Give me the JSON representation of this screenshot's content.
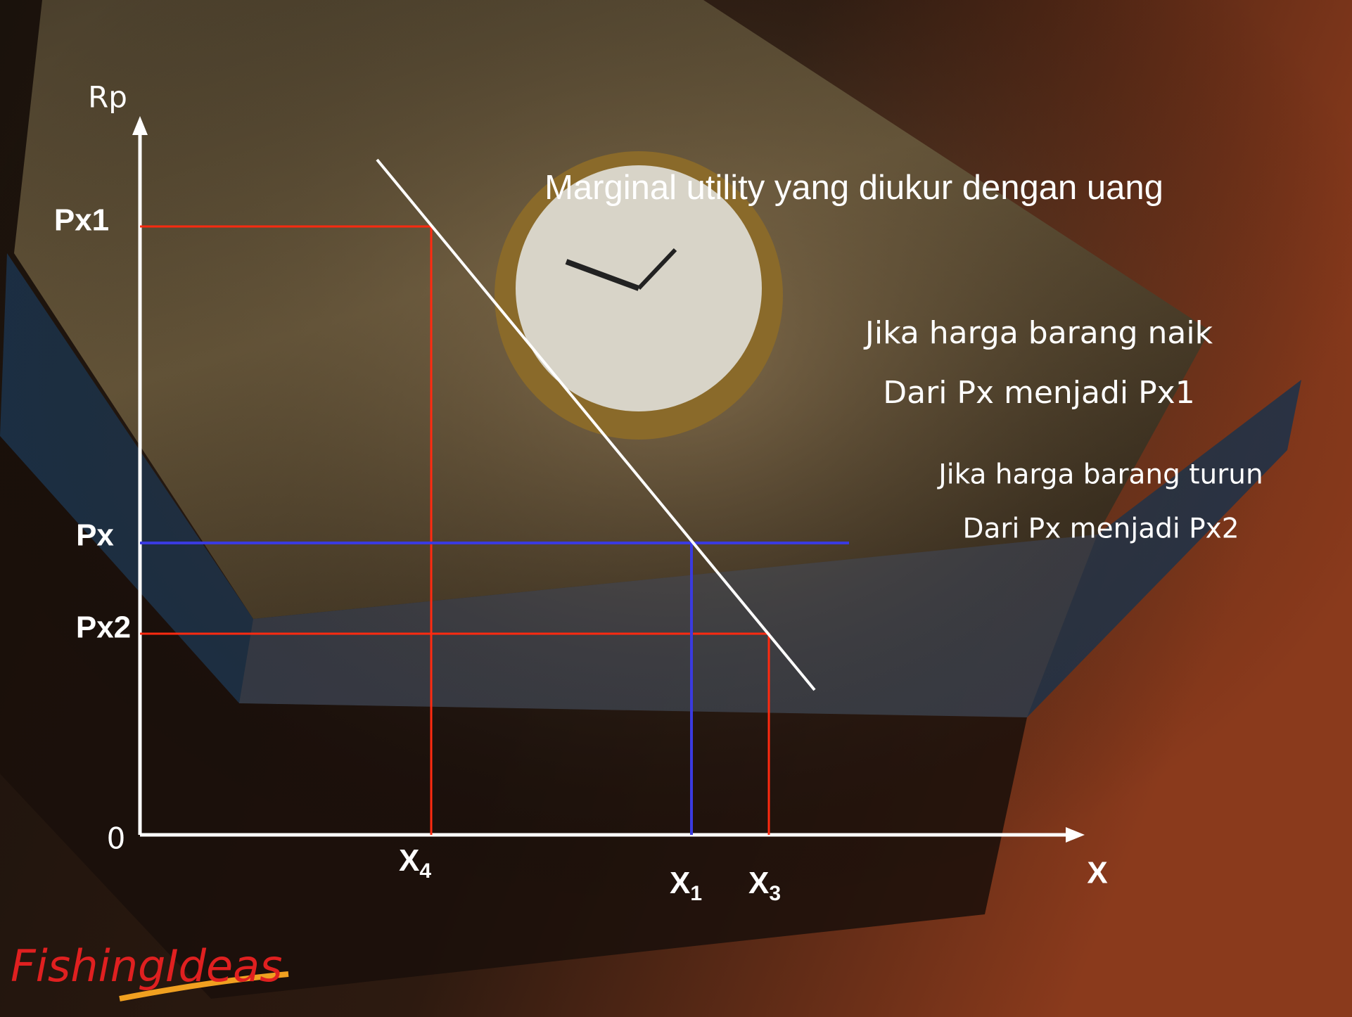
{
  "axes": {
    "y_label": "Rp",
    "x_label": "X",
    "origin": "0"
  },
  "price_levels": [
    "Px1",
    "Px",
    "Px2"
  ],
  "quantity_labels": [
    {
      "base": "X",
      "sub": "4"
    },
    {
      "base": "X",
      "sub": "1"
    },
    {
      "base": "X",
      "sub": "3"
    }
  ],
  "title": "Marginal utility yang diukur dengan uang",
  "notes": [
    "Jika harga barang naik",
    "Dari Px menjadi Px1",
    "Jika harga barang turun",
    "Dari Px menjadi Px2"
  ],
  "logo": "FishingIdeas"
}
